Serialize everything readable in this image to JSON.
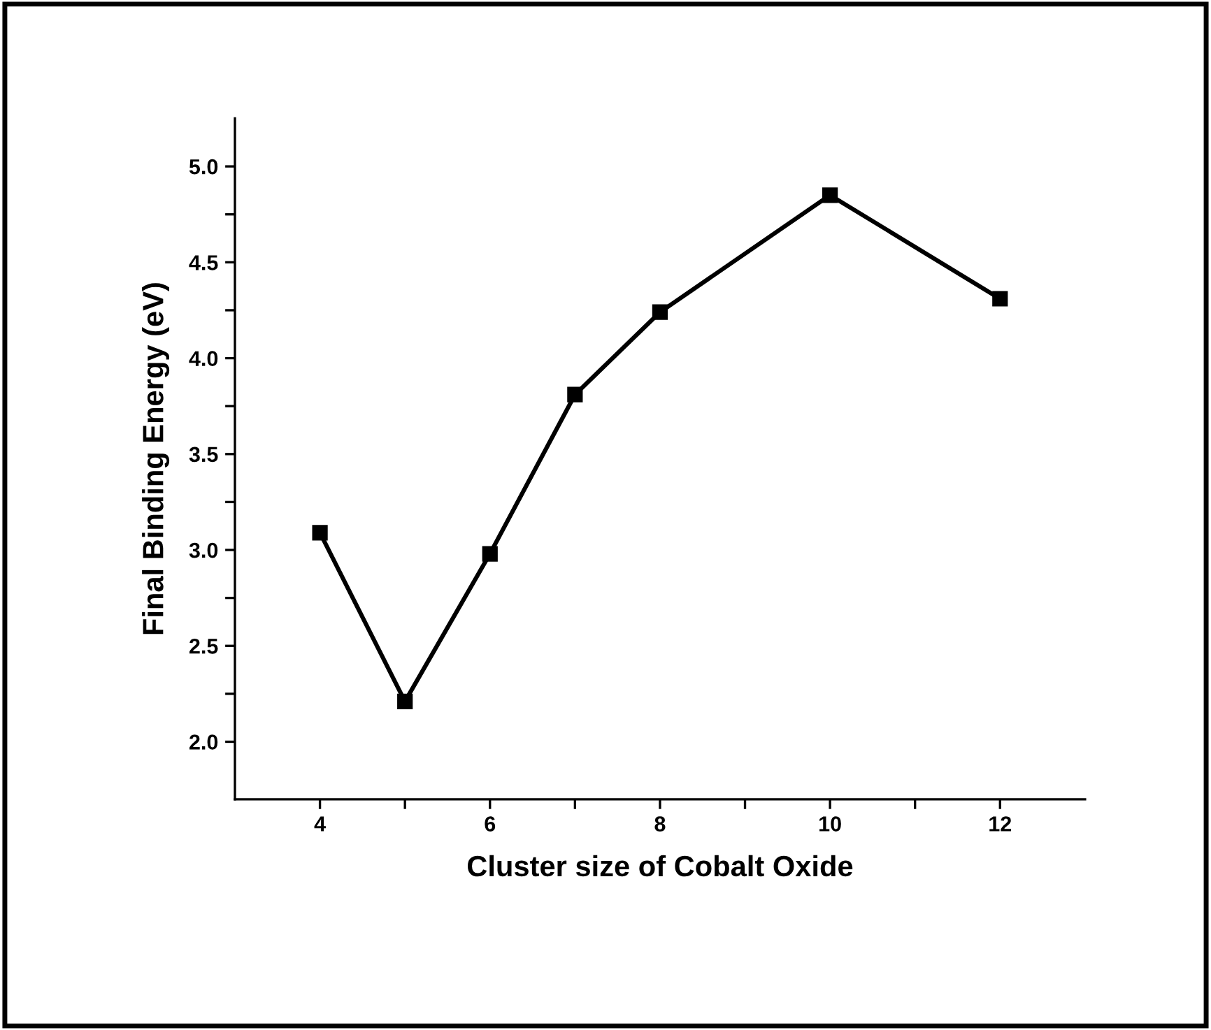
{
  "chart_data": {
    "type": "line",
    "xlabel": "Cluster size of Cobalt Oxide",
    "ylabel": "Final Binding Energy (eV)",
    "x": [
      4,
      5,
      6,
      7,
      8,
      10,
      12
    ],
    "series": [
      {
        "color": "#000000",
        "values": [
          3.09,
          2.21,
          2.98,
          3.81,
          4.24,
          4.85,
          4.31
        ]
      }
    ],
    "marker": "square",
    "line_style": "solid",
    "grid": false,
    "legend": false,
    "xlim": [
      3,
      13
    ],
    "xticks": [
      4,
      {
        "value": 5,
        "label": null
      },
      6,
      {
        "value": 7,
        "label": null
      },
      8,
      {
        "value": 9,
        "label": null
      },
      10,
      {
        "value": 11,
        "label": null
      },
      12
    ],
    "ylim": [
      1.7,
      5.25
    ],
    "yticks": [
      {
        "value": 2.0,
        "label": "2.0"
      },
      {
        "value": 2.25,
        "label": null
      },
      {
        "value": 2.5,
        "label": "2.5"
      },
      {
        "value": 2.75,
        "label": null
      },
      {
        "value": 3.0,
        "label": "3.0"
      },
      {
        "value": 3.25,
        "label": null
      },
      {
        "value": 3.5,
        "label": "3.5"
      },
      {
        "value": 3.75,
        "label": null
      },
      {
        "value": 4.0,
        "label": "4.0"
      },
      {
        "value": 4.25,
        "label": null
      },
      {
        "value": 4.5,
        "label": "4.5"
      },
      {
        "value": 4.75,
        "label": null
      },
      {
        "value": 5.0,
        "label": "5.0"
      }
    ]
  }
}
